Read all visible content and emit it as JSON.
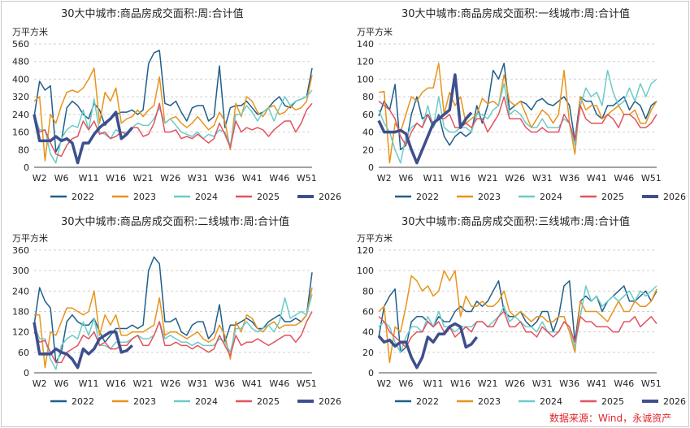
{
  "source": "数据来源：Wind，永诚资产",
  "colors": {
    "2022": "#1f5f8b",
    "2023": "#e8941a",
    "2024": "#6ccbc7",
    "2025": "#e2535f",
    "2026": "#3d4f8e"
  },
  "chart_data": [
    {
      "type": "line",
      "title": "30大中城市:商品房成交面积:周:合计值",
      "unit": "万平方米",
      "ylim": [
        0,
        560
      ],
      "yticks": [
        "0",
        "80",
        "160",
        "240",
        "320",
        "400",
        "480",
        "560"
      ],
      "xticks": [
        "W2",
        "W6",
        "W11",
        "W16",
        "W21",
        "W26",
        "W31",
        "W36",
        "W41",
        "W46",
        "W51"
      ],
      "series": [
        {
          "name": "2022",
          "values": [
            230,
            390,
            350,
            370,
            70,
            120,
            270,
            300,
            280,
            240,
            220,
            290,
            260,
            190,
            220,
            240,
            250,
            250,
            260,
            240,
            260,
            470,
            520,
            530,
            290,
            280,
            300,
            250,
            210,
            270,
            280,
            280,
            210,
            230,
            460,
            180,
            270,
            280,
            280,
            300,
            270,
            240,
            250,
            270,
            300,
            320,
            280,
            270,
            300,
            310,
            320,
            450
          ]
        },
        {
          "name": "2023",
          "values": [
            300,
            320,
            30,
            240,
            200,
            280,
            340,
            350,
            340,
            360,
            400,
            450,
            200,
            340,
            300,
            360,
            200,
            220,
            230,
            260,
            230,
            260,
            280,
            410,
            200,
            220,
            230,
            200,
            180,
            200,
            230,
            200,
            170,
            190,
            250,
            210,
            80,
            290,
            230,
            320,
            300,
            250,
            230,
            270,
            280,
            240,
            250,
            280,
            260,
            270,
            300,
            420
          ]
        },
        {
          "name": "2024",
          "values": [
            240,
            170,
            170,
            60,
            20,
            130,
            170,
            190,
            180,
            260,
            170,
            310,
            160,
            150,
            130,
            170,
            160,
            160,
            180,
            200,
            190,
            190,
            220,
            270,
            200,
            220,
            190,
            160,
            150,
            140,
            160,
            130,
            150,
            140,
            170,
            160,
            100,
            240,
            240,
            280,
            250,
            210,
            250,
            270,
            210,
            270,
            320,
            280,
            300,
            310,
            320,
            350
          ]
        },
        {
          "name": "2025",
          "values": [
            220,
            160,
            170,
            110,
            60,
            50,
            100,
            130,
            140,
            210,
            170,
            210,
            150,
            160,
            130,
            140,
            160,
            150,
            180,
            180,
            140,
            150,
            200,
            290,
            160,
            160,
            170,
            130,
            140,
            130,
            150,
            130,
            110,
            130,
            200,
            150,
            90,
            210,
            160,
            180,
            170,
            180,
            170,
            140,
            170,
            190,
            210,
            210,
            160,
            200,
            260,
            290
          ]
        },
        {
          "name": "2026",
          "values": [
            240,
            120,
            120,
            120,
            140,
            120,
            130,
            110,
            20,
            110,
            110,
            150,
            180,
            200,
            220,
            250,
            130,
            150,
            180
          ]
        }
      ]
    },
    {
      "type": "line",
      "title": "30大中城市:商品房成交面积:一线城市:周:合计值",
      "unit": "万平方米",
      "ylim": [
        0,
        140
      ],
      "yticks": [
        "0",
        "20",
        "40",
        "60",
        "80",
        "100",
        "120",
        "140"
      ],
      "xticks": [
        "W2",
        "W6",
        "W11",
        "W16",
        "W21",
        "W26",
        "W31",
        "W36",
        "W41",
        "W46",
        "W51"
      ],
      "series": [
        {
          "name": "2022",
          "values": [
            58,
            75,
            65,
            94,
            20,
            25,
            60,
            80,
            55,
            60,
            45,
            60,
            35,
            25,
            35,
            40,
            35,
            40,
            70,
            50,
            70,
            110,
            100,
            118,
            65,
            70,
            75,
            72,
            65,
            75,
            78,
            72,
            70,
            75,
            80,
            70,
            30,
            80,
            75,
            75,
            60,
            55,
            70,
            70,
            75,
            80,
            65,
            75,
            70,
            55,
            70,
            75
          ]
        },
        {
          "name": "2023",
          "values": [
            85,
            86,
            5,
            50,
            40,
            60,
            80,
            75,
            85,
            90,
            90,
            118,
            60,
            85,
            70,
            80,
            50,
            55,
            60,
            78,
            72,
            75,
            70,
            105,
            75,
            70,
            75,
            60,
            45,
            55,
            65,
            60,
            50,
            60,
            110,
            50,
            15,
            80,
            65,
            70,
            70,
            55,
            60,
            65,
            70,
            60,
            60,
            65,
            50,
            50,
            65,
            75
          ]
        },
        {
          "name": "2024",
          "values": [
            65,
            50,
            40,
            20,
            5,
            35,
            45,
            50,
            45,
            70,
            45,
            80,
            45,
            40,
            40,
            45,
            45,
            40,
            60,
            60,
            55,
            65,
            70,
            95,
            60,
            65,
            60,
            50,
            45,
            45,
            55,
            45,
            45,
            45,
            55,
            50,
            25,
            70,
            90,
            80,
            85,
            70,
            110,
            85,
            70,
            75,
            90,
            75,
            95,
            80,
            95,
            100
          ]
        },
        {
          "name": "2025",
          "values": [
            75,
            70,
            65,
            55,
            35,
            25,
            40,
            50,
            45,
            60,
            50,
            55,
            55,
            60,
            45,
            45,
            50,
            45,
            55,
            55,
            40,
            50,
            60,
            80,
            55,
            55,
            55,
            45,
            40,
            40,
            45,
            40,
            40,
            40,
            60,
            50,
            30,
            70,
            55,
            50,
            50,
            50,
            60,
            55,
            45,
            60,
            60,
            55,
            45,
            45,
            50,
            60
          ]
        },
        {
          "name": "2026",
          "values": [
            53,
            40,
            40,
            40,
            42,
            38,
            20,
            5,
            20,
            35,
            50,
            55,
            60,
            65,
            105,
            45,
            55,
            62
          ]
        }
      ]
    },
    {
      "type": "line",
      "title": "30大中城市:商品房成交面积:二线城市:周:合计值",
      "unit": "万平方米",
      "ylim": [
        0,
        360
      ],
      "yticks": [
        "0",
        "60",
        "120",
        "180",
        "240",
        "300",
        "360"
      ],
      "xticks": [
        "W2",
        "W6",
        "W11",
        "W16",
        "W21",
        "W26",
        "W31",
        "W36",
        "W41",
        "W46",
        "W51"
      ],
      "series": [
        {
          "name": "2022",
          "values": [
            140,
            250,
            210,
            190,
            30,
            60,
            150,
            170,
            150,
            140,
            140,
            160,
            120,
            90,
            110,
            130,
            130,
            130,
            140,
            130,
            140,
            300,
            340,
            320,
            150,
            150,
            160,
            120,
            110,
            140,
            150,
            150,
            100,
            120,
            200,
            90,
            140,
            140,
            150,
            160,
            150,
            130,
            130,
            150,
            160,
            170,
            150,
            150,
            160,
            150,
            170,
            295
          ]
        },
        {
          "name": "2023",
          "values": [
            170,
            170,
            15,
            120,
            110,
            150,
            190,
            190,
            180,
            170,
            180,
            240,
            110,
            170,
            140,
            170,
            110,
            110,
            120,
            120,
            120,
            130,
            140,
            220,
            110,
            120,
            120,
            110,
            100,
            110,
            120,
            100,
            90,
            100,
            140,
            110,
            40,
            150,
            120,
            170,
            160,
            130,
            120,
            140,
            150,
            130,
            140,
            140,
            140,
            150,
            170,
            250
          ]
        },
        {
          "name": "2024",
          "values": [
            140,
            100,
            100,
            40,
            10,
            80,
            100,
            110,
            100,
            150,
            110,
            160,
            80,
            80,
            70,
            90,
            90,
            90,
            100,
            110,
            100,
            100,
            110,
            150,
            100,
            110,
            100,
            90,
            90,
            80,
            90,
            80,
            80,
            80,
            100,
            90,
            60,
            130,
            130,
            150,
            130,
            120,
            130,
            140,
            120,
            150,
            220,
            160,
            170,
            180,
            170,
            230
          ]
        },
        {
          "name": "2025",
          "values": [
            120,
            90,
            95,
            60,
            30,
            30,
            60,
            70,
            80,
            110,
            100,
            120,
            80,
            90,
            70,
            70,
            80,
            80,
            100,
            110,
            80,
            80,
            110,
            150,
            80,
            80,
            90,
            80,
            80,
            70,
            80,
            70,
            60,
            70,
            110,
            80,
            50,
            110,
            80,
            90,
            90,
            100,
            90,
            80,
            90,
            100,
            110,
            110,
            90,
            110,
            150,
            180
          ]
        },
        {
          "name": "2026",
          "values": [
            148,
            55,
            55,
            55,
            70,
            60,
            55,
            40,
            15,
            70,
            55,
            70,
            100,
            110,
            120,
            120,
            60,
            65,
            80
          ]
        }
      ]
    },
    {
      "type": "line",
      "title": "30大中城市:商品房成交面积:三线城市:周:合计值",
      "unit": "万平方米",
      "ylim": [
        0,
        120
      ],
      "yticks": [
        "0",
        "20",
        "40",
        "60",
        "80",
        "100",
        "120"
      ],
      "xticks": [
        "W2",
        "W6",
        "W11",
        "W16",
        "W21",
        "W26",
        "W31",
        "W36",
        "W41",
        "W46",
        "W51"
      ],
      "series": [
        {
          "name": "2022",
          "values": [
            35,
            65,
            75,
            82,
            20,
            25,
            50,
            55,
            55,
            50,
            45,
            55,
            50,
            50,
            60,
            65,
            60,
            60,
            70,
            65,
            70,
            80,
            90,
            60,
            55,
            55,
            60,
            50,
            45,
            50,
            60,
            60,
            40,
            55,
            85,
            90,
            30,
            70,
            75,
            70,
            75,
            60,
            70,
            75,
            80,
            85,
            70,
            70,
            75,
            80,
            70,
            80
          ]
        },
        {
          "name": "2023",
          "values": [
            60,
            65,
            10,
            45,
            40,
            65,
            95,
            90,
            80,
            85,
            75,
            80,
            100,
            90,
            100,
            55,
            75,
            65,
            65,
            70,
            65,
            65,
            70,
            80,
            60,
            55,
            60,
            55,
            50,
            55,
            55,
            50,
            50,
            55,
            55,
            40,
            20,
            70,
            60,
            60,
            60,
            55,
            50,
            60,
            70,
            60,
            60,
            70,
            65,
            65,
            70,
            82
          ]
        },
        {
          "name": "2024",
          "values": [
            45,
            50,
            45,
            30,
            20,
            35,
            45,
            45,
            40,
            55,
            45,
            60,
            45,
            45,
            40,
            45,
            45,
            45,
            50,
            50,
            45,
            50,
            55,
            65,
            50,
            55,
            50,
            45,
            45,
            40,
            50,
            40,
            40,
            40,
            50,
            45,
            25,
            55,
            85,
            70,
            75,
            65,
            70,
            75,
            70,
            75,
            80,
            70,
            80,
            75,
            80,
            85
          ]
        },
        {
          "name": "2025",
          "values": [
            55,
            50,
            40,
            35,
            30,
            25,
            35,
            40,
            40,
            50,
            45,
            50,
            40,
            45,
            35,
            40,
            45,
            40,
            50,
            50,
            45,
            45,
            55,
            60,
            45,
            45,
            50,
            40,
            40,
            35,
            45,
            40,
            35,
            40,
            50,
            45,
            30,
            55,
            50,
            50,
            45,
            45,
            45,
            40,
            40,
            50,
            50,
            55,
            45,
            50,
            55,
            48
          ]
        },
        {
          "name": "2026",
          "values": [
            36,
            30,
            32,
            26,
            30,
            30,
            15,
            5,
            15,
            35,
            30,
            38,
            38,
            45,
            48,
            45,
            25,
            28,
            35
          ]
        }
      ]
    }
  ]
}
